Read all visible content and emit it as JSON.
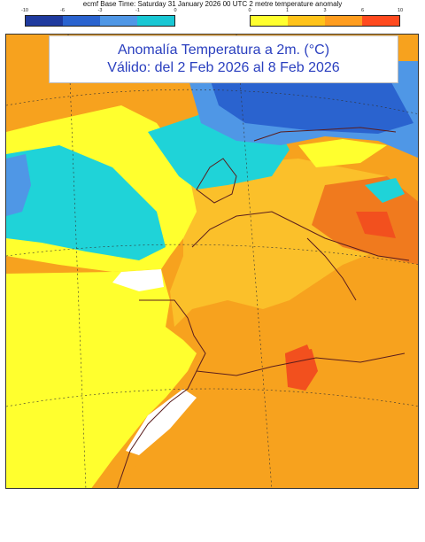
{
  "header": {
    "line": "ecmf  Base Time: Saturday 31 January 2026 00 UTC 2 metre temperature anomaly"
  },
  "legend": {
    "cold_colors": [
      "#1f3a9e",
      "#2a63cf",
      "#4f97e6",
      "#19c7d4"
    ],
    "cold_ticks": [
      "-10",
      "-6",
      "-3",
      "-1",
      "0"
    ],
    "warm_colors": [
      "#ffff2e",
      "#ffc31a",
      "#ff9d1f",
      "#ff4a1e"
    ],
    "warm_ticks": [
      "0",
      "1",
      "3",
      "6",
      "10"
    ]
  },
  "title": {
    "line1": "Anomalía Temperatura a 2m. (°C)",
    "line2": "Válido: del 2 Feb 2026 al 8 Feb 2026"
  },
  "colors": {
    "orange": "#f7a21e",
    "light_orange": "#fbc02a",
    "deep_orange": "#f07a1e",
    "red": "#f2501e",
    "yellow": "#ffff2e",
    "cyan": "#1fd3d8",
    "blue_mid": "#2a63cf",
    "blue_light": "#4f97e6",
    "dark_red": "#c4161c",
    "coast": "#5a1d1d"
  }
}
